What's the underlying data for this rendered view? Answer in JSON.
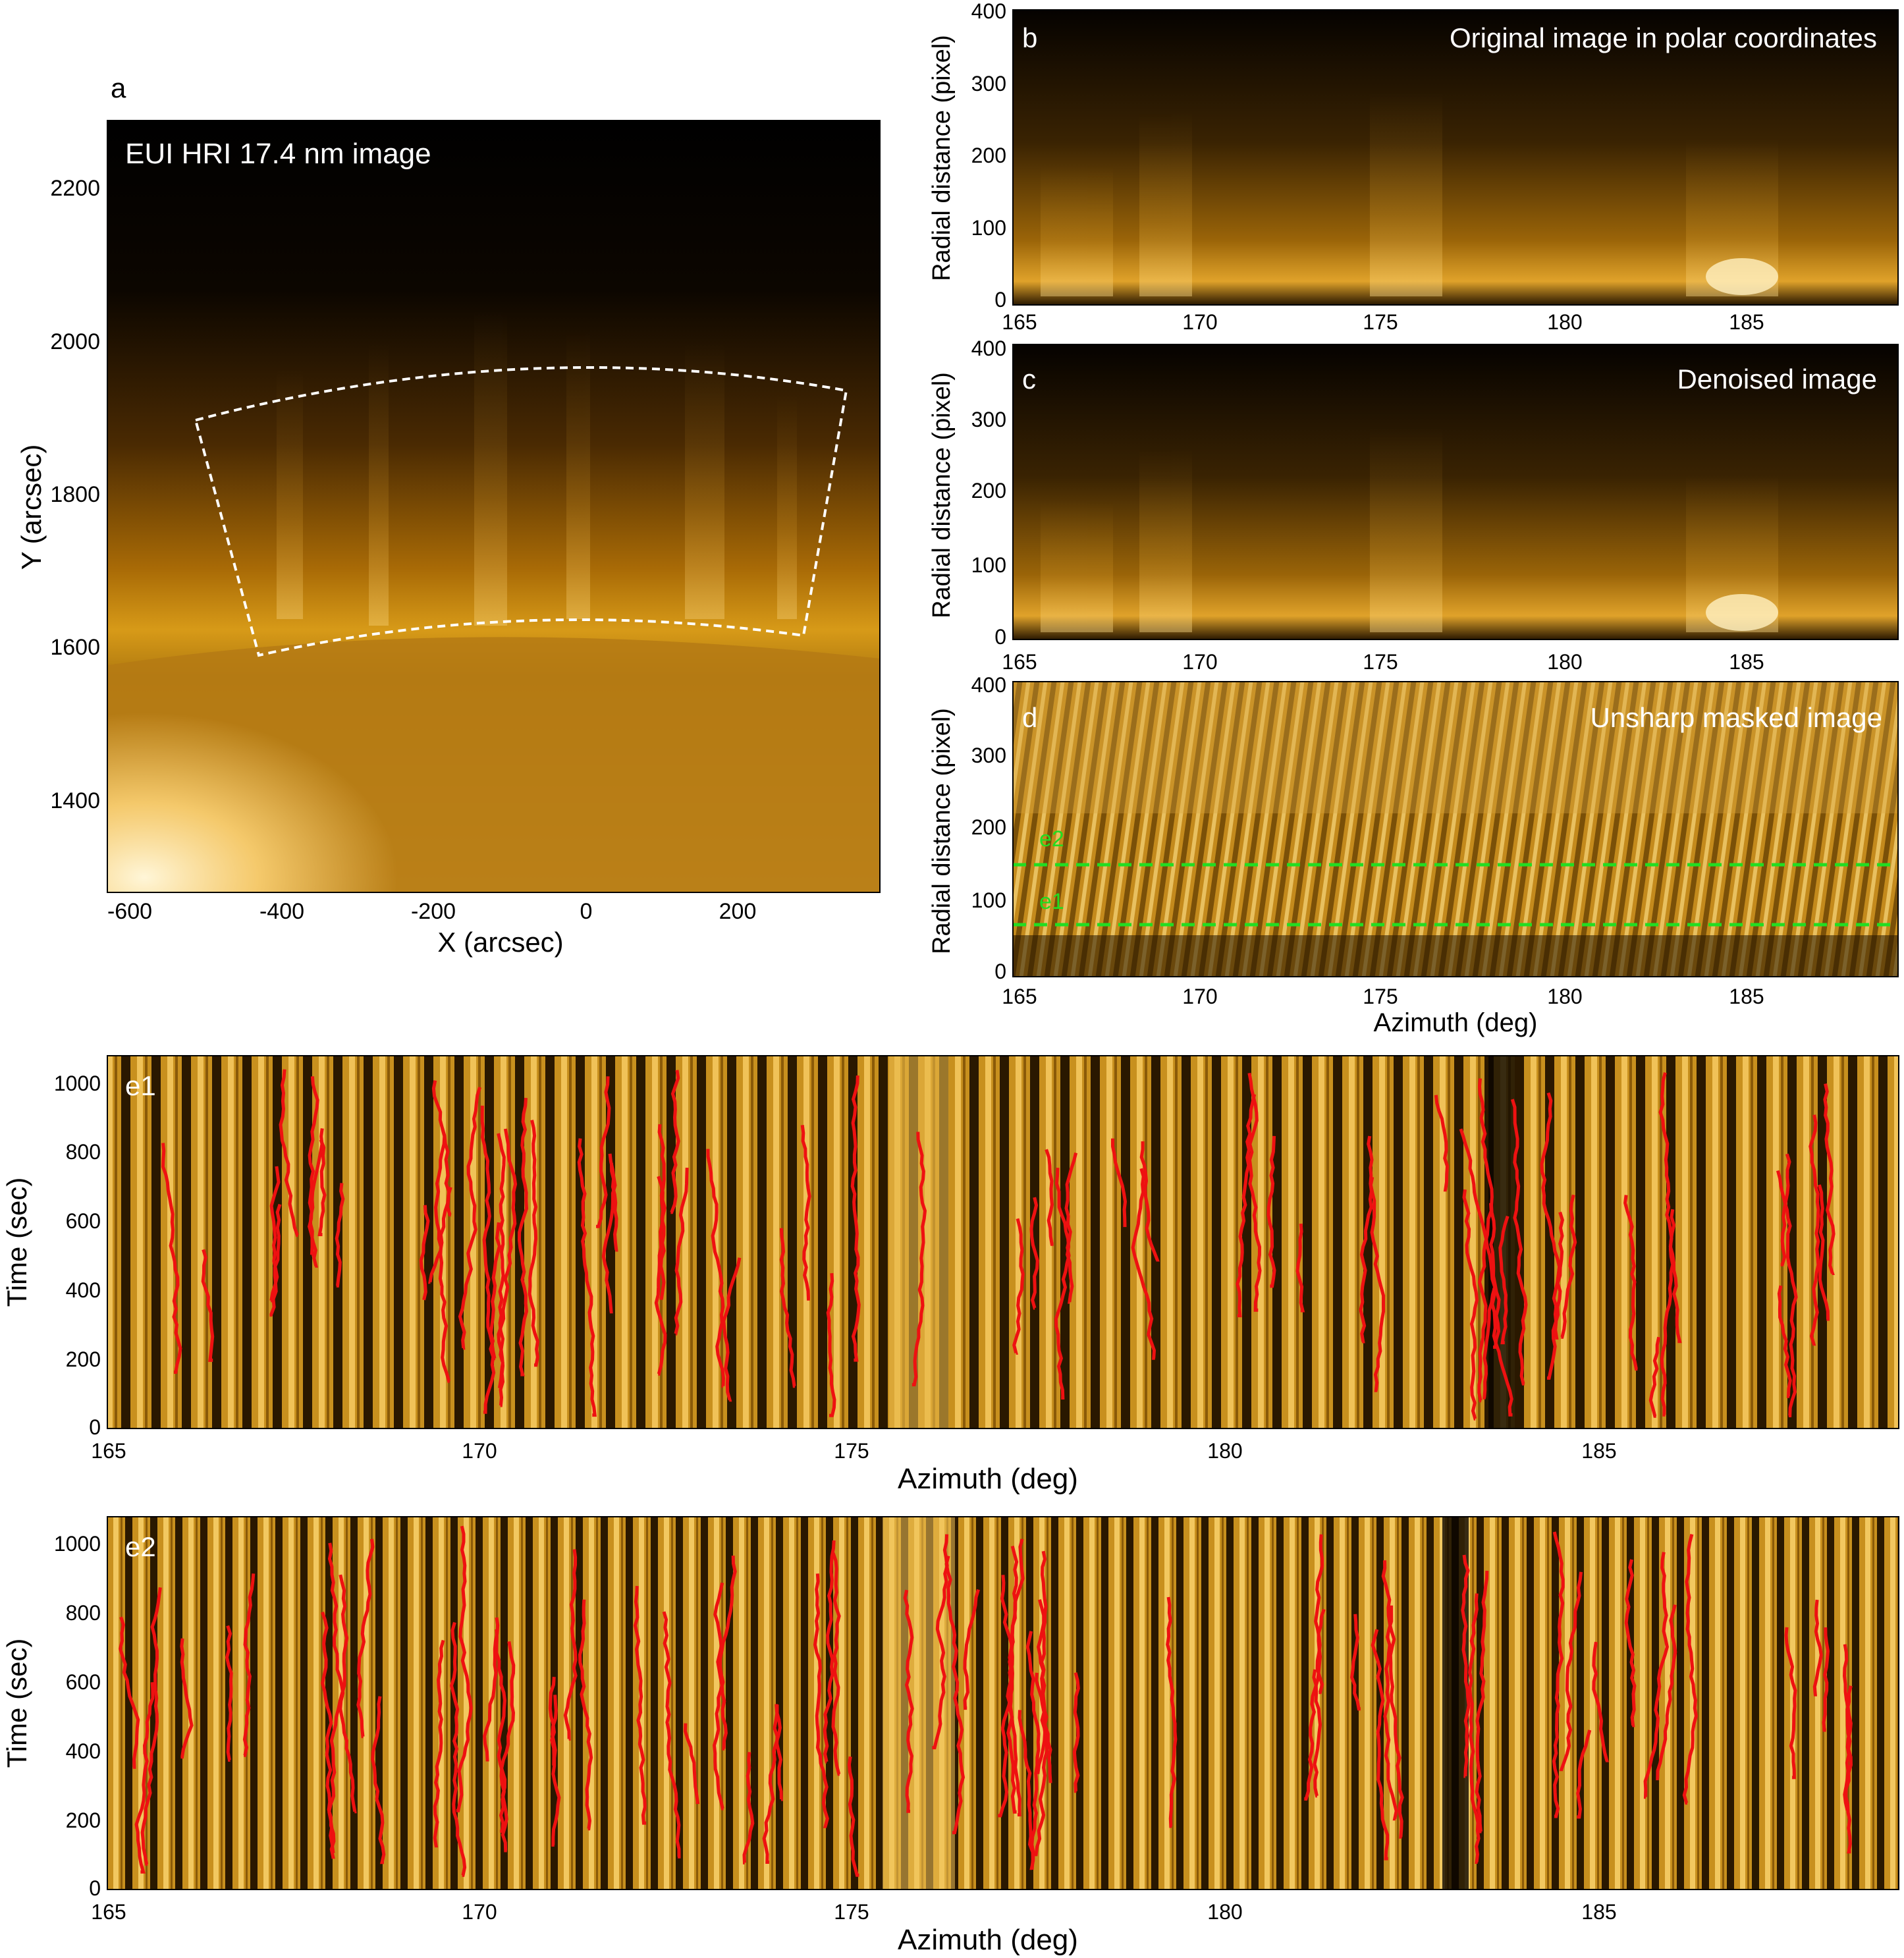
{
  "colors": {
    "sun_dark": "#0a0500",
    "sun_mid": "#c98a10",
    "sun_bright": "#ffe7a0",
    "trace_red": "#ee1111",
    "guide_green": "#22dd22",
    "box_white": "#ffffff"
  },
  "panel_a": {
    "letter": "a",
    "caption": "EUI HRI 17.4 nm image",
    "xlabel": "X (arcsec)",
    "ylabel": "Y (arcsec)",
    "xticks": [
      "-600",
      "-400",
      "-200",
      "0",
      "200"
    ],
    "yticks": [
      "2200",
      "2000",
      "1800",
      "1600",
      "1400"
    ]
  },
  "panel_b": {
    "letter": "b",
    "caption": "Original image in polar coordinates",
    "ylabel": "Radial distance (pixel)",
    "xticks": [
      "165",
      "170",
      "175",
      "180",
      "185"
    ],
    "yticks": [
      "400",
      "300",
      "200",
      "100",
      "0"
    ]
  },
  "panel_c": {
    "letter": "c",
    "caption": "Denoised image",
    "ylabel": "Radial distance (pixel)",
    "xticks": [
      "165",
      "170",
      "175",
      "180",
      "185"
    ],
    "yticks": [
      "400",
      "300",
      "200",
      "100",
      "0"
    ]
  },
  "panel_d": {
    "letter": "d",
    "caption": "Unsharp masked image",
    "ylabel": "Radial distance (pixel)",
    "xlabel": "Azimuth (deg)",
    "xticks": [
      "165",
      "170",
      "175",
      "180",
      "185"
    ],
    "yticks": [
      "400",
      "300",
      "200",
      "100",
      "0"
    ],
    "slit_e2_label": "e2",
    "slit_e1_label": "e1"
  },
  "panel_e1": {
    "letter": "e1",
    "xlabel": "Azimuth (deg)",
    "ylabel": "Time (sec)",
    "xticks": [
      "165",
      "170",
      "175",
      "180",
      "185"
    ],
    "yticks": [
      "1000",
      "800",
      "600",
      "400",
      "200",
      "0"
    ]
  },
  "panel_e2": {
    "letter": "e2",
    "xlabel": "Azimuth (deg)",
    "ylabel": "Time (sec)",
    "xticks": [
      "165",
      "170",
      "175",
      "180",
      "185"
    ],
    "yticks": [
      "1000",
      "800",
      "600",
      "400",
      "200",
      "0"
    ]
  }
}
